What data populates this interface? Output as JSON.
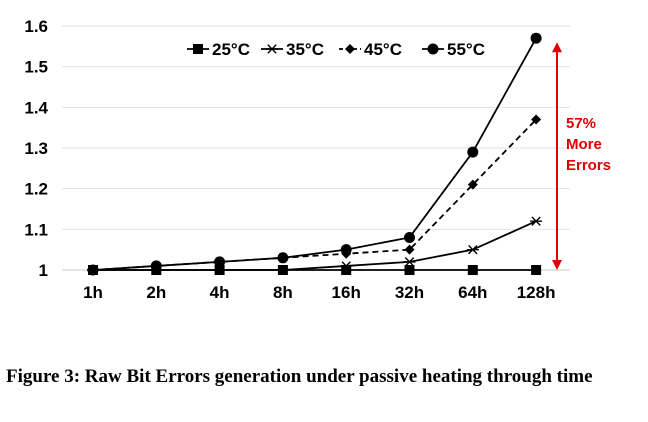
{
  "caption": "Figure 3:  Raw Bit Errors generation under passive heating through time",
  "annotation": {
    "lines": [
      "57%",
      "More",
      "Errors"
    ],
    "color": "#e00000"
  },
  "chart_data": {
    "type": "line",
    "title": "",
    "xlabel": "",
    "ylabel": "",
    "categories": [
      "1h",
      "2h",
      "4h",
      "8h",
      "16h",
      "32h",
      "64h",
      "128h"
    ],
    "ylim": [
      1,
      1.6
    ],
    "yticks": [
      "1",
      "1.1",
      "1.2",
      "1.3",
      "1.4",
      "1.5",
      "1.6"
    ],
    "grid": "horizontal",
    "legend_position": "top",
    "series": [
      {
        "name": "25°C",
        "marker": "square",
        "dash": "solid",
        "values": [
          1,
          1,
          1,
          1,
          1,
          1,
          1,
          1
        ]
      },
      {
        "name": "35°C",
        "marker": "asterisk",
        "dash": "solid",
        "values": [
          1,
          1,
          1,
          1,
          1.01,
          1.02,
          1.05,
          1.12
        ]
      },
      {
        "name": "45°C",
        "marker": "diamond",
        "dash": "dashed",
        "values": [
          1,
          1.01,
          1.02,
          1.03,
          1.04,
          1.05,
          1.21,
          1.37
        ]
      },
      {
        "name": "55°C",
        "marker": "circle",
        "dash": "solid",
        "values": [
          1,
          1.01,
          1.02,
          1.03,
          1.05,
          1.08,
          1.29,
          1.57
        ]
      }
    ]
  }
}
